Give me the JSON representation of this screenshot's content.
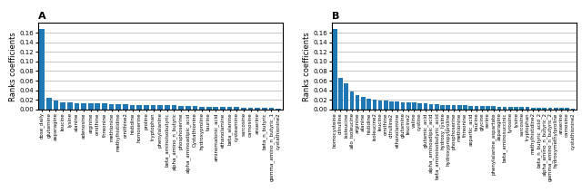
{
  "chart_data": [
    {
      "type": "bar",
      "title": "A",
      "ylabel": "Ranks coefficients",
      "grid": true,
      "categories": [
        "dose_daily",
        "glutamine",
        "asparagine",
        "leucine",
        "lysine",
        "alanine",
        "adenosine",
        "arginine",
        "ornithine",
        "threonine",
        "methionine",
        "methylhistidine",
        "ornithine2",
        "histidine",
        "homoserine",
        "proline",
        "tryptophan",
        "phenylalanine",
        "beta_aminoisobutyric",
        "alpha_amino_n_butyric",
        "phosphoserine",
        "alpha_aminoadipic_acid",
        "Cystathionine",
        "hydroxyproline",
        "taurine",
        "aminomalonic_acid",
        "ethanolamine",
        "beta_alanine",
        "cysteamine",
        "sarcosine",
        "carnosine",
        "anserine",
        "beta_n_butyric",
        "gamma_amino_n_butyric_1",
        "cystathionine2"
      ],
      "values": [
        0.168,
        0.025,
        0.018,
        0.015,
        0.014,
        0.013,
        0.013,
        0.013,
        0.012,
        0.012,
        0.011,
        0.011,
        0.011,
        0.01,
        0.01,
        0.01,
        0.009,
        0.009,
        0.009,
        0.009,
        0.008,
        0.007,
        0.007,
        0.006,
        0.006,
        0.006,
        0.005,
        0.005,
        0.005,
        0.004,
        0.004,
        0.004,
        0.003,
        0.003,
        0.002
      ],
      "ylim": [
        0,
        0.18
      ],
      "yticks": [
        {
          "value": 0.0,
          "label": "0.00"
        },
        {
          "value": 0.02,
          "label": "0.02"
        },
        {
          "value": 0.04,
          "label": "0.04"
        },
        {
          "value": 0.06,
          "label": "0.06"
        },
        {
          "value": 0.08,
          "label": "0.08"
        },
        {
          "value": 0.1,
          "label": "0.10"
        },
        {
          "value": 0.12,
          "label": "0.12"
        },
        {
          "value": 0.14,
          "label": "0.14"
        },
        {
          "value": 0.16,
          "label": "0.16"
        }
      ]
    },
    {
      "type": "bar",
      "title": "B",
      "ylabel": "Ranks coefficients",
      "grid": true,
      "categories": [
        "homocysteine",
        "citrulline",
        "isoleucine",
        "allo_isoleucine",
        "arginine",
        "alanine",
        "histidine",
        "isoleucine2",
        "leucine",
        "ornithine",
        "citrulline2",
        "ethanolamine",
        "glutamine",
        "leucine2",
        "valine",
        "cystine",
        "glutamic_acid",
        "alpha_aminoadipic_acid",
        "beta_aminoisobutyric_acid",
        "hydroxy_lysine",
        "hydroxypropylproline",
        "phosphoserine",
        "methionine",
        "threonine",
        "aspartic_acid",
        "taurine",
        "glycine",
        "serine",
        "phenylalanine_aspartate",
        "asparagine",
        "beta_aminosuccinic",
        "tyrosine",
        "lysine",
        "sarcosine",
        "tryptophan",
        "methylhistidine2",
        "beta_n_butyric_acid_2",
        "alpha_amino_n_butyric_2",
        "gamma_amino_n_butyric_2",
        "hydroxymethylproline",
        "anserine",
        "carnosine",
        "cystathionine2"
      ],
      "values": [
        0.168,
        0.065,
        0.055,
        0.038,
        0.03,
        0.027,
        0.022,
        0.02,
        0.019,
        0.018,
        0.017,
        0.016,
        0.015,
        0.014,
        0.014,
        0.013,
        0.012,
        0.011,
        0.011,
        0.01,
        0.01,
        0.009,
        0.009,
        0.009,
        0.008,
        0.008,
        0.007,
        0.007,
        0.007,
        0.006,
        0.006,
        0.006,
        0.005,
        0.005,
        0.005,
        0.004,
        0.004,
        0.004,
        0.003,
        0.003,
        0.003,
        0.003,
        0.002
      ],
      "ylim": [
        0,
        0.18
      ],
      "yticks": [
        {
          "value": 0.0,
          "label": "0.00"
        },
        {
          "value": 0.02,
          "label": "0.02"
        },
        {
          "value": 0.04,
          "label": "0.04"
        },
        {
          "value": 0.06,
          "label": "0.06"
        },
        {
          "value": 0.08,
          "label": "0.08"
        },
        {
          "value": 0.1,
          "label": "0.10"
        },
        {
          "value": 0.12,
          "label": "0.12"
        },
        {
          "value": 0.14,
          "label": "0.14"
        },
        {
          "value": 0.16,
          "label": "0.16"
        }
      ]
    }
  ]
}
